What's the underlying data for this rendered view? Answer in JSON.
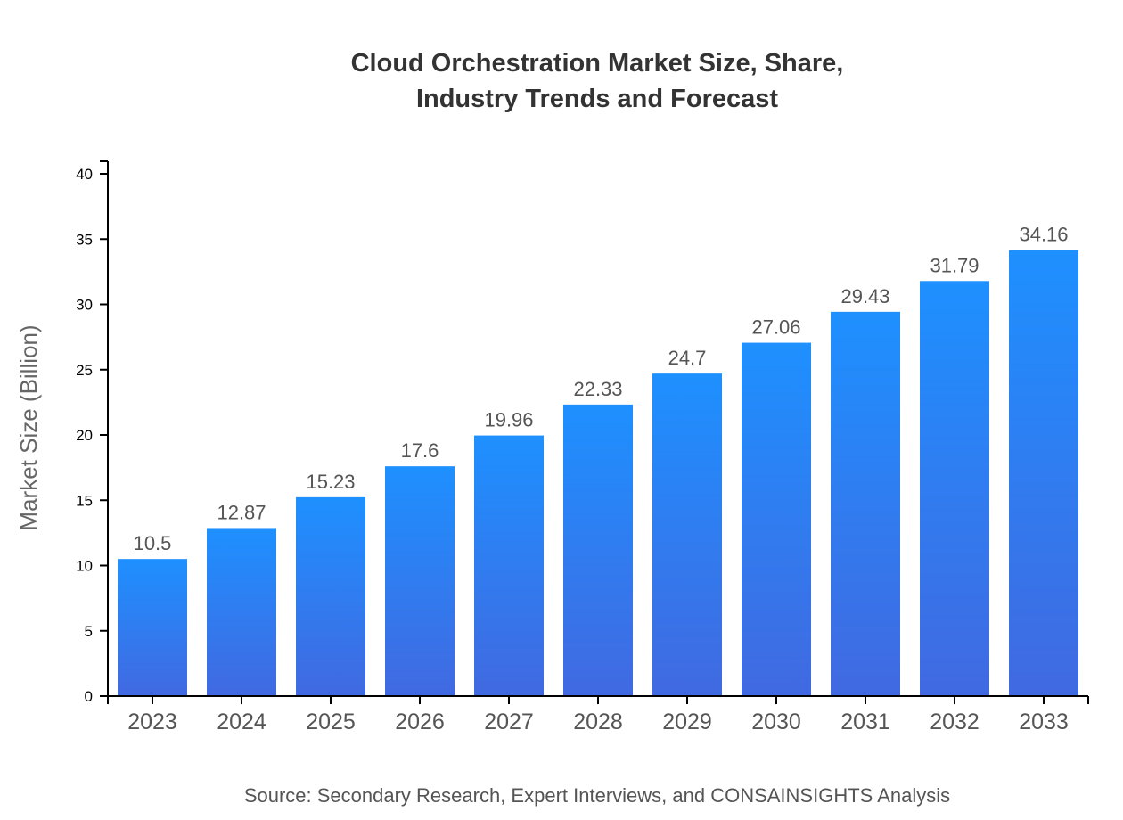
{
  "chart_data": {
    "type": "bar",
    "title": [
      "Cloud Orchestration Market Size, Share,",
      "Industry Trends and Forecast"
    ],
    "xlabel": "",
    "ylabel": "Market Size (Billion)",
    "categories": [
      "2023",
      "2024",
      "2025",
      "2026",
      "2027",
      "2028",
      "2029",
      "2030",
      "2031",
      "2032",
      "2033"
    ],
    "values": [
      10.5,
      12.87,
      15.23,
      17.6,
      19.96,
      22.33,
      24.7,
      27.06,
      29.43,
      31.79,
      34.16
    ],
    "data_labels": [
      "10.5",
      "12.87",
      "15.23",
      "17.6",
      "19.96",
      "22.33",
      "24.7",
      "27.06",
      "29.43",
      "31.79",
      "34.16"
    ],
    "ylim": [
      0,
      40
    ],
    "yticks": [
      0,
      5,
      10,
      15,
      20,
      25,
      30,
      35,
      40
    ],
    "grid": false,
    "legend": "none",
    "colors": {
      "bar_top": "#1e90ff",
      "bar_bottom": "#4169e1"
    }
  },
  "source": "Source: Secondary Research, Expert Interviews, and CONSAINSIGHTS Analysis"
}
